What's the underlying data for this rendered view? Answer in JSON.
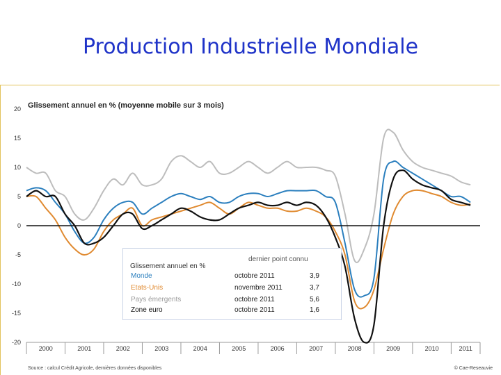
{
  "slide": {
    "title": "Production Industrielle Mondiale",
    "source": "Source : calcul Crédit Agricole, dernières données disponibles",
    "credit": "© Cae-Reseauvie"
  },
  "legend_box": {
    "column_header": "dernier point connu",
    "unit_label": "Glissement annuel en %",
    "rows": [
      {
        "name": "Monde",
        "date": "octobre 2011",
        "value": "3,9",
        "color": "#2b7fbe"
      },
      {
        "name": "Etats-Unis",
        "date": "novembre 2011",
        "value": "3,7",
        "color": "#e08a30"
      },
      {
        "name": "Pays émergents",
        "date": "octobre 2011",
        "value": "5,6",
        "color": "#9a9a9a"
      },
      {
        "name": "Zone euro",
        "date": "octobre 2011",
        "value": "1,6",
        "color": "#111111"
      }
    ]
  },
  "chart_data": {
    "type": "line",
    "title": "Glissement annuel en % (moyenne mobile sur 3 mois)",
    "xlabel": "",
    "ylabel": "",
    "ylim": [
      -20,
      20
    ],
    "yticks": [
      20,
      15,
      10,
      5,
      0,
      -5,
      -10,
      -15,
      -20
    ],
    "xlim": [
      2000,
      2011.75
    ],
    "xticks": [
      "2000",
      "2001",
      "2002",
      "2003",
      "2004",
      "2005",
      "2006",
      "2007",
      "2008",
      "2009",
      "2010",
      "2011"
    ],
    "x": [
      2000.0,
      2000.25,
      2000.5,
      2000.75,
      2001.0,
      2001.25,
      2001.5,
      2001.75,
      2002.0,
      2002.25,
      2002.5,
      2002.75,
      2003.0,
      2003.25,
      2003.5,
      2003.75,
      2004.0,
      2004.25,
      2004.5,
      2004.75,
      2005.0,
      2005.25,
      2005.5,
      2005.75,
      2006.0,
      2006.25,
      2006.5,
      2006.75,
      2007.0,
      2007.25,
      2007.5,
      2007.75,
      2008.0,
      2008.25,
      2008.5,
      2008.75,
      2009.0,
      2009.25,
      2009.5,
      2009.75,
      2010.0,
      2010.25,
      2010.5,
      2010.75,
      2011.0,
      2011.25,
      2011.5
    ],
    "series": [
      {
        "name": "Pays émergents",
        "color": "#bdbdbd",
        "width": 2,
        "values": [
          10,
          9,
          9,
          6,
          5,
          2,
          1,
          3,
          6,
          8,
          7,
          9,
          7,
          7,
          8,
          11,
          12,
          11,
          10,
          11,
          9,
          9,
          10,
          11,
          10,
          9,
          10,
          11,
          10,
          10,
          10,
          9.5,
          8.5,
          2,
          -6,
          -4,
          2,
          15,
          16,
          13,
          11,
          10,
          9.5,
          9,
          8.5,
          7.5,
          7
        ]
      },
      {
        "name": "Monde",
        "color": "#2b7fbe",
        "width": 2,
        "values": [
          6,
          6.5,
          6,
          4,
          2,
          -1,
          -3,
          -2,
          1,
          3,
          4,
          4,
          2,
          3,
          4,
          5,
          5.5,
          5,
          4.5,
          5,
          4,
          4,
          5,
          5.5,
          5.5,
          5,
          5.5,
          6,
          6,
          6,
          6,
          5,
          4,
          -3,
          -11,
          -12,
          -9,
          8,
          11,
          10,
          9,
          8,
          7,
          6,
          5,
          5,
          4
        ]
      },
      {
        "name": "Etats-Unis",
        "color": "#e08a30",
        "width": 2,
        "values": [
          5,
          5,
          3,
          1,
          -2,
          -4,
          -5,
          -4,
          -1,
          1,
          2,
          3,
          0,
          1,
          1.5,
          2,
          2.5,
          3,
          3.5,
          4,
          3,
          2,
          3,
          4,
          3.5,
          3,
          3,
          2.5,
          2.5,
          3,
          2.5,
          1.5,
          -1,
          -5,
          -13,
          -14,
          -11,
          -4,
          2,
          5,
          6,
          6,
          5.5,
          5,
          4,
          3.5,
          3.7
        ]
      },
      {
        "name": "Zone euro",
        "color": "#111111",
        "width": 2.2,
        "values": [
          5,
          6,
          5,
          5,
          2,
          0,
          -3,
          -3,
          -2,
          0,
          2,
          2,
          -0.5,
          0,
          1,
          2,
          3,
          2.5,
          1.5,
          1,
          1,
          2,
          3,
          3.5,
          4,
          3.5,
          3.5,
          4,
          3.5,
          4,
          3.5,
          1.5,
          -2,
          -7,
          -16,
          -20,
          -17,
          0,
          8,
          9.5,
          8,
          7,
          6.5,
          6,
          4.5,
          4,
          3.5
        ]
      }
    ]
  }
}
